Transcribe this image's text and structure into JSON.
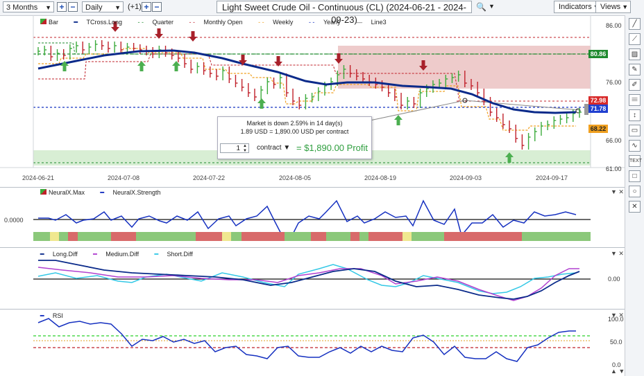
{
  "toolbar": {
    "range": "3 Months",
    "interval": "Daily",
    "offset": "(+1)",
    "title": "Light Sweet Crude Oil - Continuous (CL) (2024-06-21 - 2024-09-23)",
    "indicators": "Indicators",
    "views": "Views"
  },
  "legend": {
    "bar": "Bar",
    "tcross": "TCross.Long",
    "quarter": "Quarter",
    "monthly": "Monthly Open",
    "weekly": "Weekly",
    "yearly": "Yearly",
    "line3": "Line3"
  },
  "price_axis": [
    "86.00",
    "76.00",
    "66.00",
    "61.00"
  ],
  "price_badges": {
    "green": "80.86",
    "red": "72.98",
    "blue": "71.78",
    "orange": "68.22"
  },
  "dates": [
    "2024-06-21",
    "2024-07-08",
    "2024-07-22",
    "2024-08-05",
    "2024-08-19",
    "2024-09-03",
    "2024-09-17"
  ],
  "popup": {
    "line1": "Market is down 2.59% in 14 day(s)",
    "line2": "1.89 USD = 1,890.00 USD per contract",
    "qty": "1",
    "unit": "contract",
    "profit": "= $1,890.00 Profit"
  },
  "neural": {
    "max": "NeuralX.Max",
    "strength": "NeuralX.Strength",
    "axis": "0.0000"
  },
  "diff": {
    "long": "Long.Diff",
    "medium": "Medium.Diff",
    "short": "Short.Diff",
    "axis": "0.00"
  },
  "rsi": {
    "label": "RSI",
    "axis": [
      "100.0",
      "50.0",
      "0.0"
    ]
  },
  "colors": {
    "up": "#3cab3c",
    "down": "#c0202a",
    "tcross": "#0a2a8a",
    "weekly": "#f0a020"
  }
}
